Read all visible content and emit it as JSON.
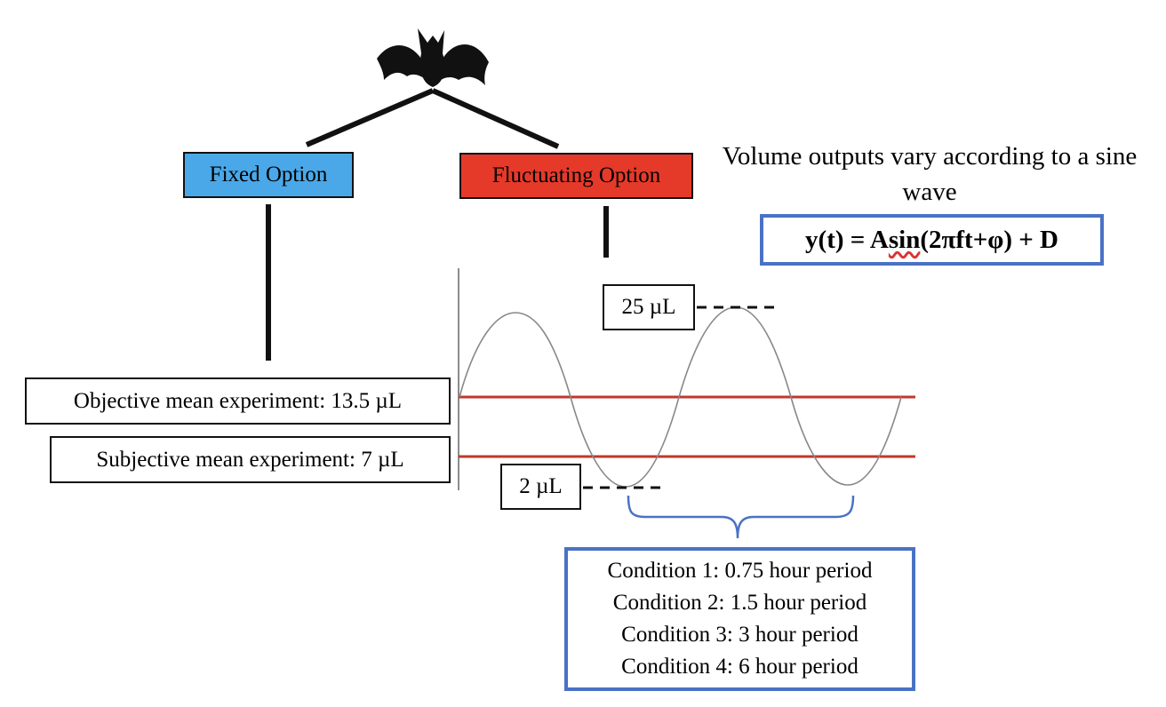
{
  "options": {
    "fixed_label": "Fixed Option",
    "fluctuating_label": "Fluctuating Option"
  },
  "experiments": {
    "objective": "Objective mean experiment: 13.5 µL",
    "subjective": "Subjective mean experiment: 7 µL"
  },
  "wave": {
    "peak_label": "25 µL",
    "trough_label": "2 µL"
  },
  "description": "Volume outputs vary according to a sine wave",
  "formula": {
    "prefix": "y(t) = A",
    "squiggled": "sin",
    "suffix": "(2πft+φ) + D"
  },
  "conditions": [
    "Condition 1: 0.75 hour period",
    "Condition 2: 1.5 hour period",
    "Condition 3: 3 hour period",
    "Condition 4: 6 hour period"
  ],
  "colors": {
    "fixed": "#4aa8e8",
    "fluctuating": "#e53a2a",
    "mean_lines": "#c0392b",
    "outline_blue": "#4a72c4"
  },
  "icons": [
    "bat-icon"
  ]
}
